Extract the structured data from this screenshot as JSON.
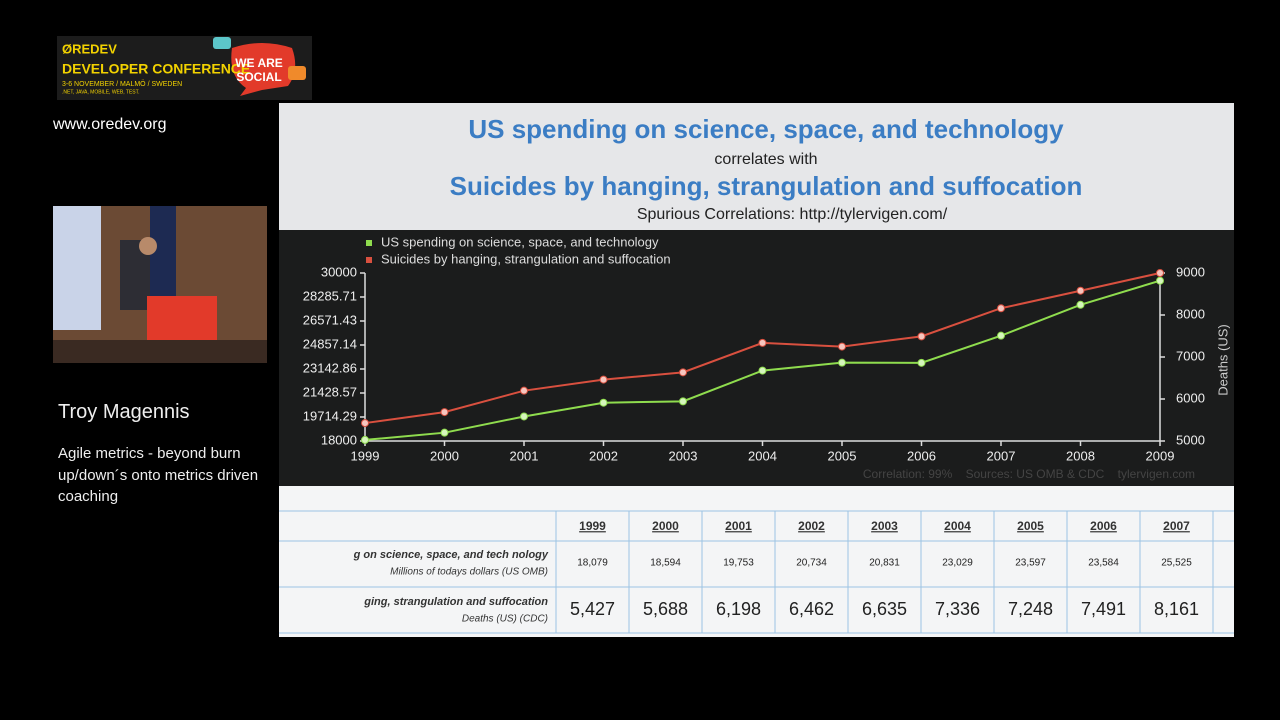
{
  "header": {
    "logo_lines": [
      "ØREDEV",
      "DEVELOPER CONFERENCE",
      "3-6 NOVEMBER / MALMÖ / SWEDEN",
      ".NET, JAVA, MOBILE, WEB, TEST."
    ],
    "badge": [
      "WE ARE",
      "SOCIAL"
    ],
    "url": "www.oredev.org"
  },
  "speaker": {
    "name": "Troy Magennis",
    "talk": "Agile metrics - beyond burn up/down´s onto metrics driven coaching"
  },
  "slide": {
    "title": "US spending on science, space, and technology",
    "connector": "correlates with",
    "title2": "Suicides by hanging, strangulation and suffocation",
    "source": "Spurious Correlations: http://tylervigen.com/"
  },
  "chart_data": {
    "type": "line",
    "x": [
      1999,
      2000,
      2001,
      2002,
      2003,
      2004,
      2005,
      2006,
      2007,
      2008,
      2009
    ],
    "series": [
      {
        "name": "US spending on science, space, and technology",
        "color": "#8fdc4e",
        "values": [
          18079,
          18594,
          19753,
          20734,
          20831,
          23029,
          23597,
          23584,
          25525,
          27731,
          29449
        ]
      },
      {
        "name": "Suicides by hanging, strangulation and suffocation",
        "color": "#d9503f",
        "axis": "y2",
        "values": [
          5427,
          5688,
          6198,
          6462,
          6635,
          7336,
          7248,
          7491,
          8161,
          8578,
          9000
        ]
      }
    ],
    "xlim": [
      1999,
      2009
    ],
    "xticks": [
      1999,
      2000,
      2001,
      2002,
      2003,
      2004,
      2005,
      2006,
      2007,
      2008,
      2009
    ],
    "ylim": [
      18000,
      30000
    ],
    "yticks": [
      18000,
      19714.29,
      21428.57,
      23142.86,
      24857.14,
      26571.43,
      28285.71,
      30000
    ],
    "y2lim": [
      5000,
      9000
    ],
    "y2ticks": [
      5000,
      6000,
      7000,
      8000,
      9000
    ],
    "y2label": "Deaths (US)",
    "footer": "Correlation: 99%    Sources: US OMB & CDC    tylervigen.com"
  },
  "table": {
    "columns": [
      "1999",
      "2000",
      "2001",
      "2002",
      "2003",
      "2004",
      "2005",
      "2006",
      "2007"
    ],
    "rows": [
      {
        "label": "g on science, space, and tech nology",
        "unit": "Millions of todays dollars (US OMB)",
        "cells": [
          "18,079",
          "18,594",
          "19,753",
          "20,734",
          "20,831",
          "23,029",
          "23,597",
          "23,584",
          "25,525"
        ]
      },
      {
        "label": "ging, strangulation and suffocation",
        "unit": "Deaths (US) (CDC)",
        "cells": [
          "5,427",
          "5,688",
          "6,198",
          "6,462",
          "6,635",
          "7,336",
          "7,248",
          "7,491",
          "8,161"
        ]
      }
    ]
  }
}
